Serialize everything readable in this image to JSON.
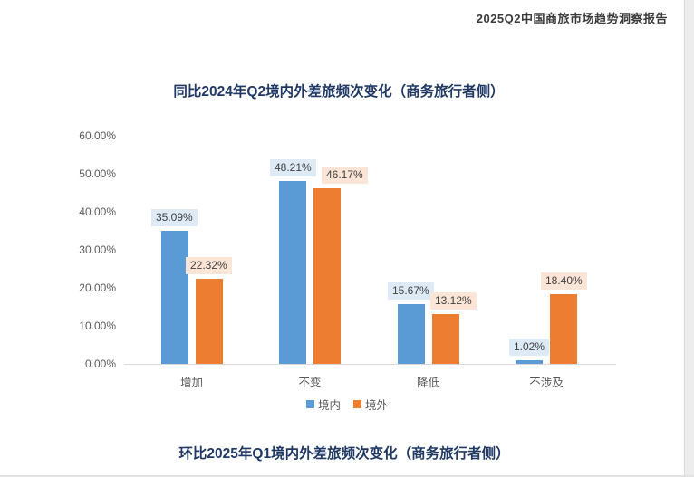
{
  "page": {
    "report_title": "2025Q2中国商旅市场趋势洞察报告",
    "section_title_bottom": "环比2025年Q1境内外差旅频次变化（商务旅行者侧）"
  },
  "chart_data": {
    "type": "bar",
    "title": "同比2024年Q2境内外差旅频次变化（商务旅行者侧）",
    "categories": [
      "增加",
      "不变",
      "降低",
      "不涉及"
    ],
    "series": [
      {
        "name": "境内",
        "color": "#5B9BD5",
        "label_bg": "#DEEBF7",
        "values": [
          35.09,
          48.21,
          15.67,
          1.02
        ],
        "labels": [
          "35.09%",
          "48.21%",
          "15.67%",
          "1.02%"
        ]
      },
      {
        "name": "境外",
        "color": "#ED7D31",
        "label_bg": "#FBE5D6",
        "values": [
          22.32,
          46.17,
          13.12,
          18.4
        ],
        "labels": [
          "22.32%",
          "46.17%",
          "13.12%",
          "18.40%"
        ]
      }
    ],
    "y_axis": {
      "min": 0,
      "max": 60,
      "tick_step": 10,
      "ticks": [
        "0.00%",
        "10.00%",
        "20.00%",
        "30.00%",
        "40.00%",
        "50.00%",
        "60.00%"
      ]
    },
    "grid": false,
    "legend_position": "bottom",
    "legend": [
      "境内",
      "境外"
    ]
  }
}
